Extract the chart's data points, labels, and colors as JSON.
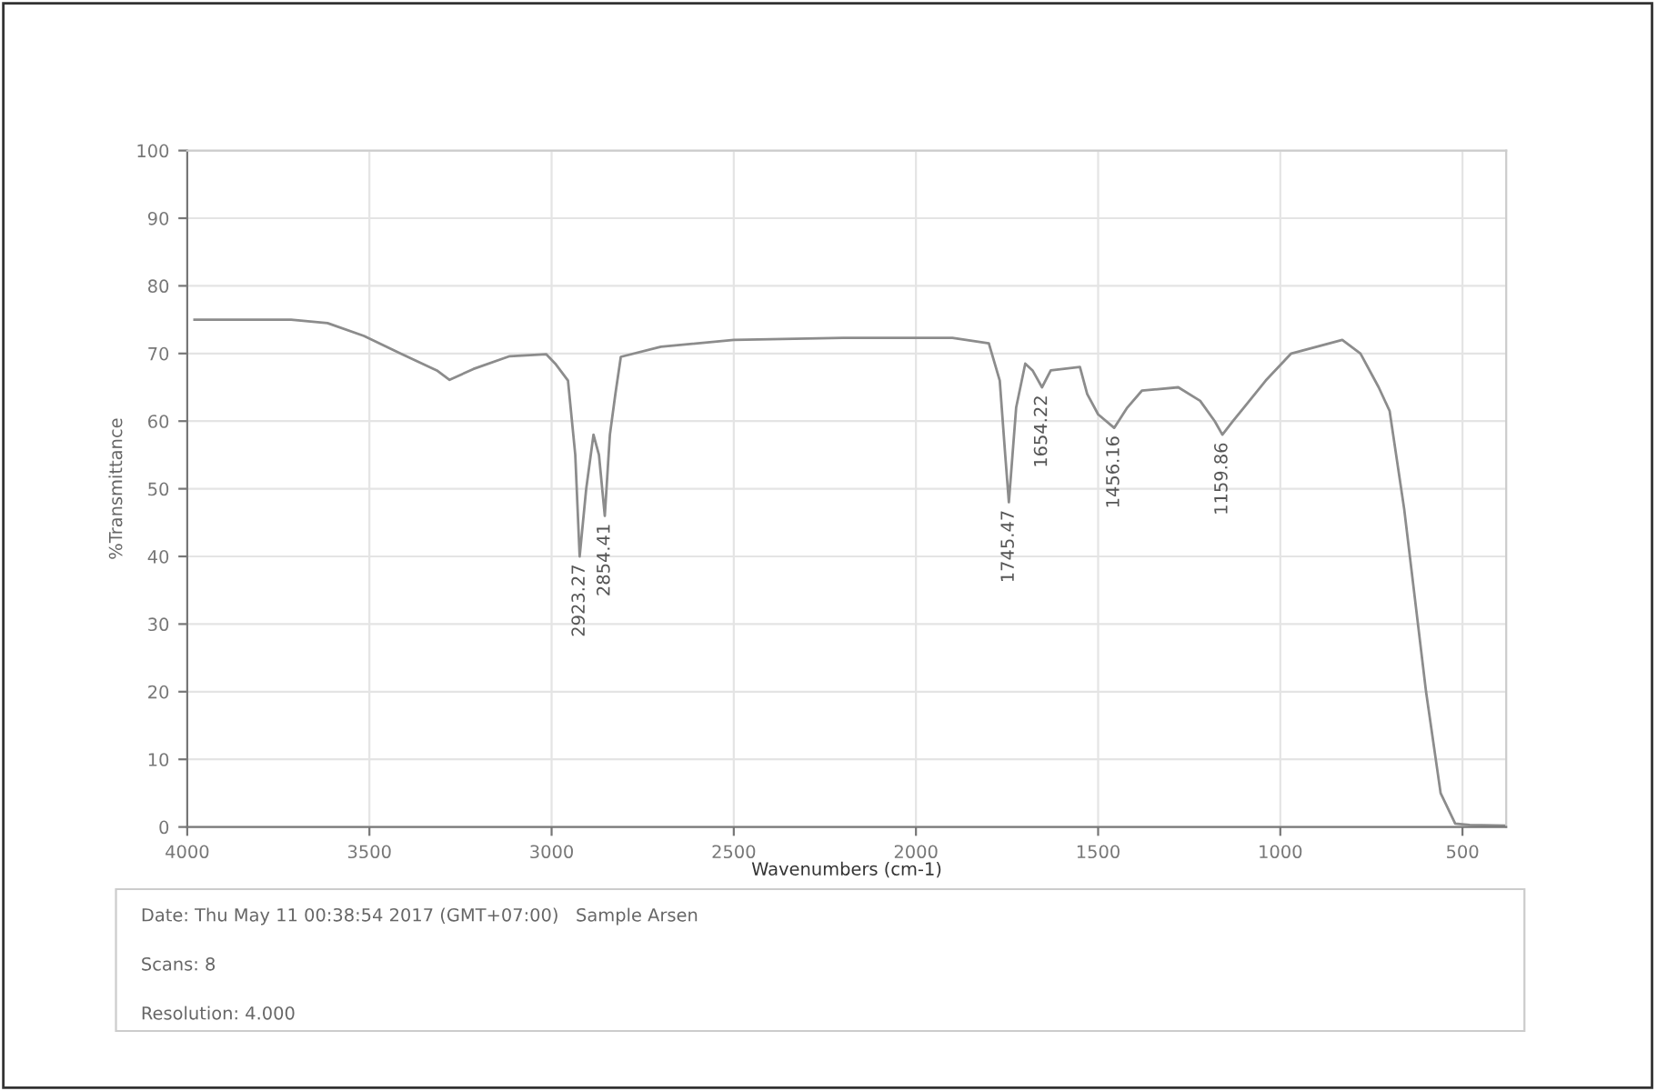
{
  "chart_data": {
    "type": "line",
    "xlabel": "Wavenumbers (cm-1)",
    "ylabel": "%Transmittance",
    "x": [
      3980,
      3715,
      3615,
      3515,
      3415,
      3315,
      3280,
      3215,
      3115,
      3015,
      2990,
      2955,
      2935,
      2923,
      2905,
      2885,
      2870,
      2854,
      2840,
      2825,
      2810,
      2700,
      2500,
      2200,
      1900,
      1800,
      1770,
      1755,
      1745,
      1735,
      1725,
      1700,
      1680,
      1654,
      1630,
      1550,
      1530,
      1500,
      1456,
      1420,
      1380,
      1280,
      1220,
      1180,
      1159,
      1130,
      1100,
      1040,
      970,
      900,
      830,
      780,
      730,
      700,
      660,
      640,
      600,
      560,
      520,
      480,
      380
    ],
    "series": [
      {
        "color": "#8c8c8c",
        "values": [
          75,
          75,
          74.5,
          72.6,
          70,
          67.5,
          66.1,
          67.7,
          69.6,
          69.9,
          68.5,
          66,
          55,
          40,
          50,
          58,
          55,
          46,
          58,
          64,
          69.5,
          71,
          72,
          72.3,
          72.3,
          71.5,
          66,
          55,
          48,
          55,
          62,
          68.5,
          67.5,
          65,
          67.5,
          68,
          64,
          61,
          59,
          62,
          64.5,
          65,
          63,
          60,
          58,
          60,
          62,
          66,
          70,
          71,
          72,
          70,
          65,
          61.5,
          47,
          38,
          20,
          5,
          0.5,
          0.3,
          0.2
        ]
      }
    ],
    "xlim": [
      4000,
      380
    ],
    "xticks": [
      4000,
      3500,
      3000,
      2500,
      2000,
      1500,
      1000,
      500
    ],
    "ylim": [
      0,
      100
    ],
    "yticks": [
      0,
      10,
      20,
      30,
      40,
      50,
      60,
      70,
      80,
      90,
      100
    ],
    "grid": true,
    "annotations": [
      {
        "text": "2923.27",
        "x": 2923,
        "y": 40
      },
      {
        "text": "2854.41",
        "x": 2854,
        "y": 46
      },
      {
        "text": "1745.47",
        "x": 1745,
        "y": 48
      },
      {
        "text": "1654.22",
        "x": 1654,
        "y": 65
      },
      {
        "text": "1456.16",
        "x": 1456,
        "y": 59
      },
      {
        "text": "1159.86",
        "x": 1159,
        "y": 58
      },
      "Date: Thu May 11 00:38:54 2017 (GMT+07:00)   Sample Arsen",
      "Scans: 8",
      "Resolution: 4.000"
    ]
  }
}
